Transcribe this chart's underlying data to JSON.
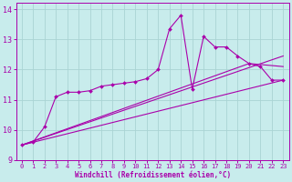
{
  "background_color": "#c8ecec",
  "grid_color": "#aad4d4",
  "line_color": "#aa00aa",
  "x_label": "Windchill (Refroidissement éolien,°C)",
  "xlim": [
    -0.5,
    23.5
  ],
  "ylim": [
    9,
    14.2
  ],
  "yticks": [
    9,
    10,
    11,
    12,
    13,
    14
  ],
  "xticks": [
    0,
    1,
    2,
    3,
    4,
    5,
    6,
    7,
    8,
    9,
    10,
    11,
    12,
    13,
    14,
    15,
    16,
    17,
    18,
    19,
    20,
    21,
    22,
    23
  ],
  "main_x": [
    0,
    1,
    2,
    3,
    4,
    5,
    6,
    7,
    8,
    9,
    10,
    11,
    12,
    13,
    14,
    15,
    16,
    17,
    18,
    19,
    20,
    21,
    22,
    23
  ],
  "main_y": [
    9.5,
    9.6,
    10.1,
    11.1,
    11.25,
    11.25,
    11.3,
    11.45,
    11.5,
    11.55,
    11.6,
    11.7,
    12.0,
    13.35,
    13.8,
    11.35,
    13.1,
    12.75,
    12.75,
    12.45,
    12.2,
    12.1,
    11.65,
    11.65
  ],
  "line2_x": [
    0,
    23
  ],
  "line2_y": [
    9.5,
    11.65
  ],
  "line3_x": [
    0,
    23
  ],
  "line3_y": [
    9.5,
    12.45
  ],
  "line4_x": [
    0,
    20,
    23
  ],
  "line4_y": [
    9.5,
    12.2,
    12.1
  ],
  "figsize": [
    3.2,
    2.0
  ],
  "dpi": 100
}
